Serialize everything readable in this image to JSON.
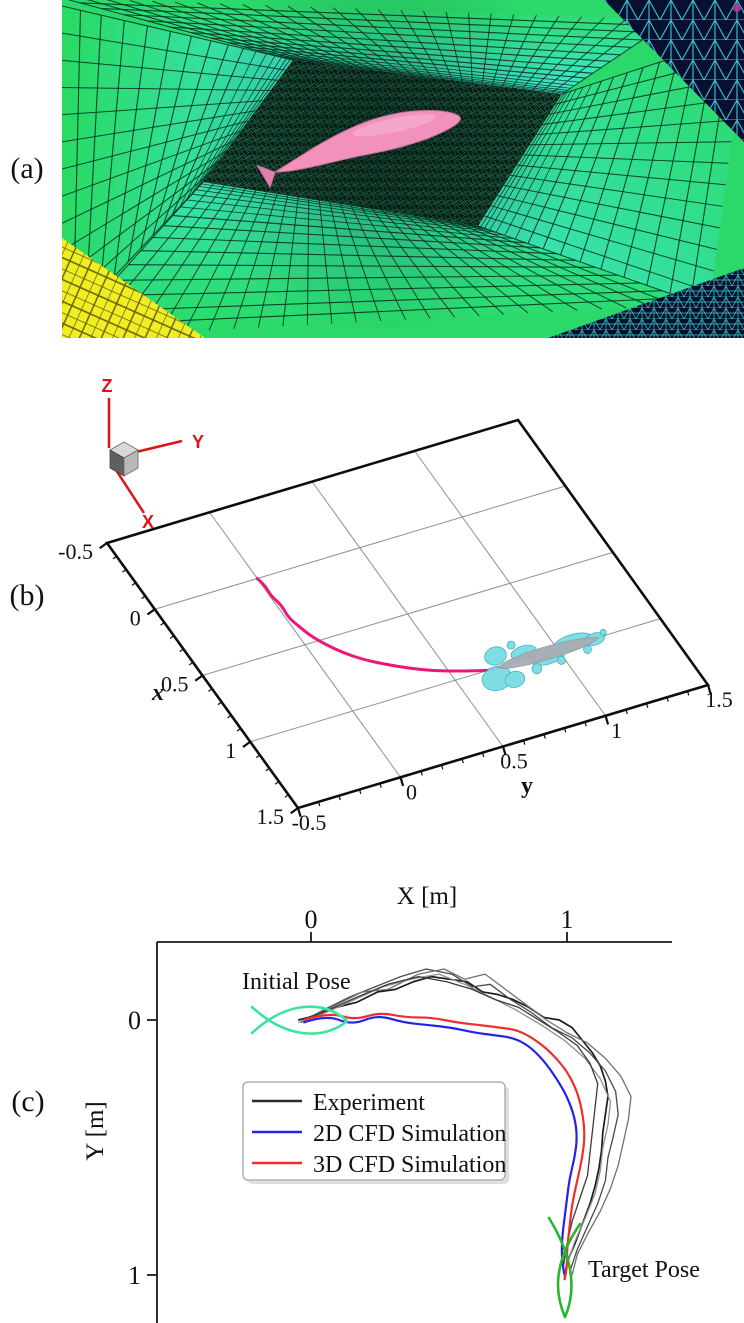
{
  "panels": {
    "a": {
      "label": "(a)",
      "colors": {
        "outer_mesh_green": "#2bd96a",
        "wall_cyan": "#3ce4c6",
        "mesh_line": "#04301f",
        "yellow_corner": "#f0ee22",
        "dark_corner": "#081030",
        "corner_wire_cyan": "#3fd9ec",
        "dense_region": "#0b1d12",
        "fish_body_pink": "#f191bc"
      }
    },
    "b": {
      "label": "(b)",
      "triad": {
        "x": "X",
        "y": "Y",
        "z": "Z",
        "color": "#dd1414"
      },
      "x_axis": {
        "label": "x",
        "ticks": [
          "-0.5",
          "0",
          "0.5",
          "1",
          "1.5"
        ]
      },
      "y_axis": {
        "label": "y",
        "ticks": [
          "-0.5",
          "0",
          "0.5",
          "1",
          "1.5"
        ]
      },
      "colors": {
        "trajectory_magenta": "#ea1878",
        "vortex_cyan": "#74dce2",
        "vortex_edge": "#2da4b5",
        "fish_body_gray": "#a9adb4",
        "grid": "#909090",
        "axis": "#0d0d0d"
      }
    },
    "c": {
      "label": "(c)",
      "x_axis": {
        "label": "X [m]",
        "ticks": [
          "0",
          "1"
        ]
      },
      "y_axis": {
        "label": "Y [m]",
        "ticks": [
          "0",
          "1"
        ]
      },
      "annotations": {
        "initial": "Initial Pose",
        "target": "Target Pose"
      },
      "legend": [
        {
          "label": "Experiment",
          "color": "#2a2a2a"
        },
        {
          "label": "2D CFD Simulation",
          "color": "#2323e6"
        },
        {
          "label": "3D CFD Simulation",
          "color": "#ef2d2d"
        }
      ],
      "pose_colors": {
        "initial": "#3ce49d",
        "target": "#29b52c"
      }
    }
  },
  "chart_data": [
    {
      "panel": "b",
      "type": "line",
      "view": "tilted 3d planar grid",
      "xlabel": "x",
      "ylabel": "y",
      "x_range": [
        -0.5,
        1.5
      ],
      "y_range": [
        -0.5,
        1.5
      ],
      "x_ticks": [
        -0.5,
        0,
        0.5,
        1,
        1.5
      ],
      "y_ticks": [
        -0.5,
        0,
        0.5,
        1,
        1.5
      ],
      "grid": true,
      "series": [
        {
          "name": "robot trajectory",
          "color": "#ea1878",
          "points": [
            [
              0,
              0
            ],
            [
              0.06,
              0.012
            ],
            [
              0.13,
              0.004
            ],
            [
              0.21,
              0.02
            ],
            [
              0.3,
              0.012
            ],
            [
              0.38,
              0.03
            ],
            [
              0.46,
              0.05
            ],
            [
              0.54,
              0.085
            ],
            [
              0.62,
              0.13
            ],
            [
              0.7,
              0.19
            ],
            [
              0.77,
              0.265
            ],
            [
              0.84,
              0.35
            ],
            [
              0.9,
              0.44
            ],
            [
              0.945,
              0.53
            ],
            [
              0.975,
              0.6
            ],
            [
              1.0,
              0.66
            ],
            [
              1.005,
              0.69
            ]
          ]
        }
      ],
      "fish_pose": {
        "x": 1.0,
        "y_from": 0.7,
        "y_to": 1.2
      }
    },
    {
      "panel": "c",
      "type": "line",
      "xlabel": "X [m]",
      "ylabel": "Y [m]",
      "x_ticks": [
        0,
        1
      ],
      "y_ticks": [
        0,
        1
      ],
      "x_range": [
        -0.6,
        1.41
      ],
      "y_range": [
        -0.31,
        1.19
      ],
      "y_axis_downward": true,
      "initial_pose": [
        0,
        0
      ],
      "target_pose": [
        1,
        1
      ],
      "series": [
        {
          "name": "Experiment",
          "color": "#2a2a2a",
          "runs": [
            {
              "color": "#1c1c1c",
              "width": 1.7,
              "points": [
                [
                  -0.05,
                  0.0
                ],
                [
                  0.03,
                  -0.02
                ],
                [
                  0.1,
                  -0.05
                ],
                [
                  0.18,
                  -0.07
                ],
                [
                  0.26,
                  -0.11
                ],
                [
                  0.33,
                  -0.12
                ],
                [
                  0.4,
                  -0.15
                ],
                [
                  0.47,
                  -0.17
                ],
                [
                  0.54,
                  -0.16
                ],
                [
                  0.61,
                  -0.15
                ],
                [
                  0.67,
                  -0.11
                ],
                [
                  0.73,
                  -0.1
                ],
                [
                  0.79,
                  -0.08
                ],
                [
                  0.85,
                  -0.05
                ],
                [
                  0.91,
                  -0.01
                ],
                [
                  0.97,
                  0.0
                ],
                [
                  1.02,
                  0.03
                ],
                [
                  1.06,
                  0.08
                ],
                [
                  1.1,
                  0.13
                ],
                [
                  1.13,
                  0.18
                ],
                [
                  1.15,
                  0.24
                ],
                [
                  1.16,
                  0.3
                ],
                [
                  1.15,
                  0.37
                ],
                [
                  1.14,
                  0.44
                ],
                [
                  1.135,
                  0.51
                ],
                [
                  1.125,
                  0.58
                ],
                [
                  1.11,
                  0.65
                ],
                [
                  1.09,
                  0.72
                ],
                [
                  1.06,
                  0.8
                ],
                [
                  1.03,
                  0.88
                ],
                [
                  1.0,
                  0.95
                ],
                [
                  0.99,
                  1.01
                ]
              ]
            },
            {
              "color": "#4a4a4a",
              "width": 1.3,
              "points": [
                [
                  -0.04,
                  0.01
                ],
                [
                  0.05,
                  -0.04
                ],
                [
                  0.15,
                  -0.09
                ],
                [
                  0.25,
                  -0.13
                ],
                [
                  0.35,
                  -0.17
                ],
                [
                  0.45,
                  -0.2
                ],
                [
                  0.55,
                  -0.18
                ],
                [
                  0.63,
                  -0.13
                ],
                [
                  0.7,
                  -0.14
                ],
                [
                  0.78,
                  -0.08
                ],
                [
                  0.86,
                  -0.03
                ],
                [
                  0.94,
                  0.03
                ],
                [
                  1.02,
                  0.07
                ],
                [
                  1.09,
                  0.13
                ],
                [
                  1.15,
                  0.2
                ],
                [
                  1.19,
                  0.28
                ],
                [
                  1.2,
                  0.37
                ],
                [
                  1.18,
                  0.46
                ],
                [
                  1.16,
                  0.54
                ],
                [
                  1.15,
                  0.63
                ],
                [
                  1.12,
                  0.72
                ],
                [
                  1.08,
                  0.81
                ],
                [
                  1.04,
                  0.9
                ],
                [
                  1.01,
                  0.99
                ]
              ]
            },
            {
              "color": "#707070",
              "width": 1.3,
              "points": [
                [
                  -0.03,
                  0.0
                ],
                [
                  0.08,
                  -0.05
                ],
                [
                  0.2,
                  -0.11
                ],
                [
                  0.3,
                  -0.12
                ],
                [
                  0.42,
                  -0.18
                ],
                [
                  0.52,
                  -0.2
                ],
                [
                  0.6,
                  -0.16
                ],
                [
                  0.68,
                  -0.18
                ],
                [
                  0.76,
                  -0.12
                ],
                [
                  0.84,
                  -0.06
                ],
                [
                  0.92,
                  0.0
                ],
                [
                  1.0,
                  0.05
                ],
                [
                  1.08,
                  0.09
                ],
                [
                  1.15,
                  0.15
                ],
                [
                  1.21,
                  0.22
                ],
                [
                  1.25,
                  0.3
                ],
                [
                  1.24,
                  0.39
                ],
                [
                  1.22,
                  0.48
                ],
                [
                  1.2,
                  0.57
                ],
                [
                  1.17,
                  0.66
                ],
                [
                  1.13,
                  0.75
                ],
                [
                  1.08,
                  0.84
                ],
                [
                  1.04,
                  0.92
                ],
                [
                  1.02,
                  1.0
                ]
              ]
            },
            {
              "color": "#8f8f8f",
              "width": 1.3,
              "points": [
                [
                  -0.05,
                  0.01
                ],
                [
                  0.06,
                  -0.03
                ],
                [
                  0.17,
                  -0.08
                ],
                [
                  0.28,
                  -0.13
                ],
                [
                  0.39,
                  -0.16
                ],
                [
                  0.5,
                  -0.18
                ],
                [
                  0.6,
                  -0.14
                ],
                [
                  0.7,
                  -0.09
                ],
                [
                  0.8,
                  -0.04
                ],
                [
                  0.9,
                  0.02
                ],
                [
                  0.99,
                  0.08
                ],
                [
                  1.07,
                  0.15
                ],
                [
                  1.13,
                  0.23
                ],
                [
                  1.17,
                  0.32
                ],
                [
                  1.16,
                  0.41
                ],
                [
                  1.14,
                  0.5
                ],
                [
                  1.13,
                  0.59
                ],
                [
                  1.11,
                  0.68
                ],
                [
                  1.07,
                  0.78
                ],
                [
                  1.03,
                  0.87
                ],
                [
                  1.0,
                  0.96
                ],
                [
                  0.99,
                  1.02
                ]
              ]
            },
            {
              "color": "#3a3a3a",
              "width": 1.3,
              "points": [
                [
                  -0.04,
                  0.0
                ],
                [
                  0.07,
                  -0.04
                ],
                [
                  0.18,
                  -0.09
                ],
                [
                  0.3,
                  -0.14
                ],
                [
                  0.42,
                  -0.17
                ],
                [
                  0.53,
                  -0.15
                ],
                [
                  0.63,
                  -0.12
                ],
                [
                  0.72,
                  -0.08
                ],
                [
                  0.81,
                  -0.05
                ],
                [
                  0.89,
                  0.0
                ],
                [
                  0.97,
                  0.05
                ],
                [
                  1.04,
                  0.1
                ],
                [
                  1.09,
                  0.17
                ],
                [
                  1.12,
                  0.25
                ],
                [
                  1.11,
                  0.34
                ],
                [
                  1.1,
                  0.43
                ],
                [
                  1.09,
                  0.52
                ],
                [
                  1.08,
                  0.61
                ],
                [
                  1.05,
                  0.7
                ],
                [
                  1.02,
                  0.79
                ],
                [
                  1.0,
                  0.88
                ],
                [
                  0.985,
                  0.97
                ]
              ]
            }
          ]
        },
        {
          "name": "2D CFD Simulation",
          "color": "#2323e6",
          "width": 2.2,
          "points": [
            [
              -0.03,
              0.01
            ],
            [
              0.06,
              -0.02
            ],
            [
              0.16,
              0.02
            ],
            [
              0.26,
              -0.02
            ],
            [
              0.36,
              0.01
            ],
            [
              0.46,
              0.02
            ],
            [
              0.55,
              0.03
            ],
            [
              0.64,
              0.05
            ],
            [
              0.72,
              0.06
            ],
            [
              0.79,
              0.07
            ],
            [
              0.85,
              0.1
            ],
            [
              0.91,
              0.16
            ],
            [
              0.96,
              0.23
            ],
            [
              1.0,
              0.3
            ],
            [
              1.03,
              0.38
            ],
            [
              1.04,
              0.46
            ],
            [
              1.03,
              0.54
            ],
            [
              1.01,
              0.62
            ],
            [
              1.0,
              0.7
            ],
            [
              0.99,
              0.78
            ],
            [
              0.98,
              0.86
            ],
            [
              0.98,
              0.94
            ],
            [
              0.99,
              1.0
            ]
          ]
        },
        {
          "name": "3D CFD Simulation",
          "color": "#ef2d2d",
          "width": 2.2,
          "points": [
            [
              -0.03,
              0.0
            ],
            [
              0.07,
              -0.03
            ],
            [
              0.17,
              0.0
            ],
            [
              0.27,
              -0.03
            ],
            [
              0.37,
              -0.01
            ],
            [
              0.47,
              -0.01
            ],
            [
              0.57,
              0.01
            ],
            [
              0.66,
              0.02
            ],
            [
              0.74,
              0.03
            ],
            [
              0.81,
              0.04
            ],
            [
              0.88,
              0.08
            ],
            [
              0.94,
              0.13
            ],
            [
              1.0,
              0.2
            ],
            [
              1.04,
              0.28
            ],
            [
              1.06,
              0.36
            ],
            [
              1.07,
              0.45
            ],
            [
              1.06,
              0.54
            ],
            [
              1.04,
              0.63
            ],
            [
              1.02,
              0.72
            ],
            [
              1.01,
              0.81
            ],
            [
              1.0,
              0.9
            ],
            [
              1.0,
              0.97
            ],
            [
              0.99,
              1.02
            ]
          ]
        }
      ]
    }
  ]
}
